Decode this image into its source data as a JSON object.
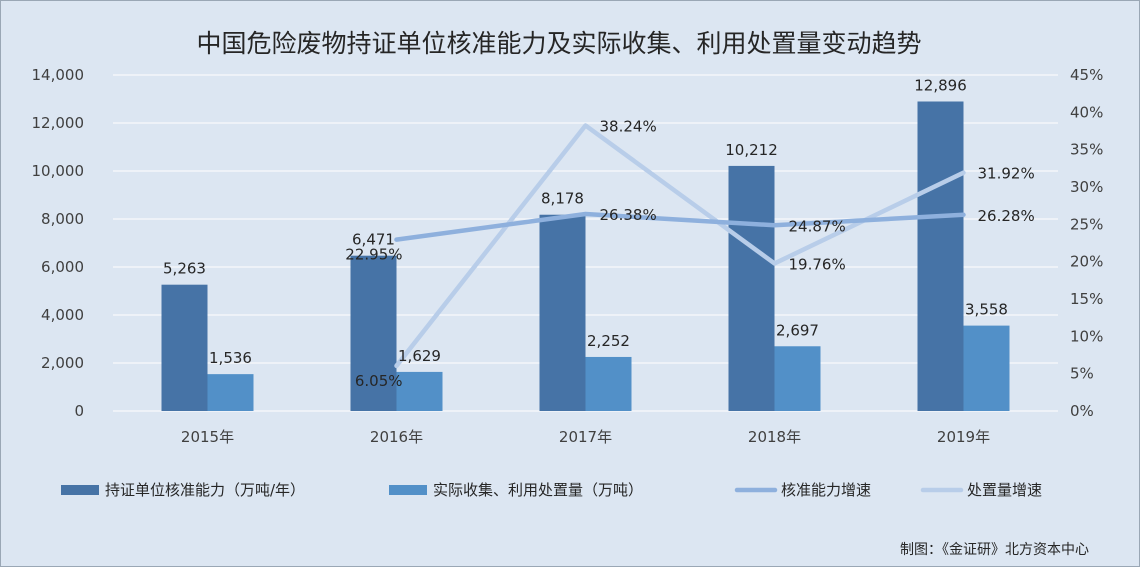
{
  "chart_data": {
    "type": "bar",
    "title": "中国危险废物持证单位核准能力及实际收集、利用处置量变动趋势",
    "categories": [
      "2015年",
      "2016年",
      "2017年",
      "2018年",
      "2019年"
    ],
    "series": [
      {
        "name": "持证单位核准能力（万吨/年）",
        "type": "bar",
        "axis": "left",
        "color": "#4673a6",
        "values": [
          5263,
          6471,
          8178,
          10212,
          12896
        ],
        "labels": [
          "5,263",
          "6,471",
          "8,178",
          "10,212",
          "12,896"
        ]
      },
      {
        "name": "实际收集、利用处置量（万吨）",
        "type": "bar",
        "axis": "left",
        "color": "#5290c8",
        "values": [
          1536,
          1629,
          2252,
          2697,
          3558
        ],
        "labels": [
          "1,536",
          "1,629",
          "2,252",
          "2,697",
          "3,558"
        ]
      },
      {
        "name": "核准能力增速",
        "type": "line",
        "axis": "right",
        "color": "#8eb0dd",
        "values": [
          null,
          22.95,
          26.38,
          24.87,
          26.28
        ],
        "labels": [
          null,
          "22.95%",
          "26.38%",
          "24.87%",
          "26.28%"
        ]
      },
      {
        "name": "处置量增速",
        "type": "line",
        "axis": "right",
        "color": "#b8cde9",
        "values": [
          null,
          6.05,
          38.24,
          19.76,
          31.92
        ],
        "labels": [
          null,
          "6.05%",
          "38.24%",
          "19.76%",
          "31.92%"
        ]
      }
    ],
    "y_left": {
      "ylim": [
        0,
        14000
      ],
      "ticks": [
        0,
        2000,
        4000,
        6000,
        8000,
        10000,
        12000,
        14000
      ],
      "tick_labels": [
        "0",
        "2,000",
        "4,000",
        "6,000",
        "8,000",
        "10,000",
        "12,000",
        "14,000"
      ]
    },
    "y_right": {
      "ylim": [
        0,
        45
      ],
      "ticks": [
        0,
        5,
        10,
        15,
        20,
        25,
        30,
        35,
        40,
        45
      ],
      "tick_labels": [
        "0%",
        "5%",
        "10%",
        "15%",
        "20%",
        "25%",
        "30%",
        "35%",
        "40%",
        "45%"
      ]
    },
    "grid": true,
    "legend_position": "bottom"
  },
  "credit": "制图：《金证研》北方资本中心"
}
